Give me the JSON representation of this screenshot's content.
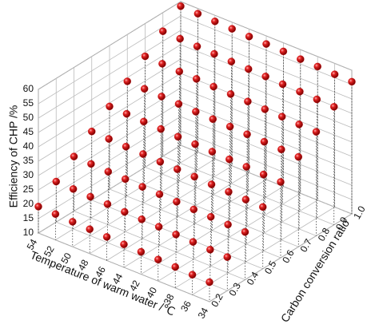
{
  "chart_data": {
    "type": "scatter3d",
    "xlabel": "Temperature of warm water /℃",
    "ylabel": "Carbon conversion ratio",
    "zlabel": "Efficiency of CHP  /%",
    "x": [
      34,
      36,
      38,
      40,
      42,
      44,
      46,
      48,
      50,
      52,
      54
    ],
    "y": [
      0.2,
      0.3,
      0.4,
      0.5,
      0.6,
      0.7,
      0.8,
      0.9,
      1
    ],
    "values": [
      [
        16.8,
        17.0,
        17.3,
        17.5,
        17.8,
        18.0,
        18.2,
        18.5,
        18.7,
        19.0,
        19.2
      ],
      [
        21.7,
        21.9,
        22.2,
        22.4,
        22.7,
        22.9,
        23.1,
        23.4,
        23.6,
        23.9,
        24.1
      ],
      [
        26.6,
        26.8,
        27.1,
        27.3,
        27.6,
        27.8,
        28.0,
        28.3,
        28.5,
        28.8,
        29.0
      ],
      [
        31.5,
        31.7,
        32.0,
        32.2,
        32.5,
        32.7,
        32.9,
        33.2,
        33.4,
        33.7,
        33.9
      ],
      [
        36.4,
        36.6,
        36.9,
        37.1,
        37.4,
        37.6,
        37.8,
        38.1,
        38.3,
        38.6,
        38.8
      ],
      [
        41.3,
        41.5,
        41.8,
        42.0,
        42.3,
        42.5,
        42.7,
        43.0,
        43.2,
        43.5,
        43.7
      ],
      [
        46.2,
        46.4,
        46.7,
        46.9,
        47.2,
        47.4,
        47.6,
        47.9,
        48.1,
        48.4,
        48.6
      ],
      [
        51.1,
        51.3,
        51.6,
        51.8,
        52.1,
        52.3,
        52.5,
        52.8,
        53.0,
        53.3,
        53.5
      ],
      [
        56.0,
        56.2,
        56.5,
        56.7,
        57.0,
        57.2,
        57.4,
        57.7,
        57.9,
        58.2,
        58.4
      ]
    ],
    "color": "#d81818",
    "xlim": [
      54,
      34
    ],
    "xticks": [
      54,
      52,
      50,
      48,
      46,
      44,
      42,
      40,
      38,
      36,
      34
    ],
    "ylim": [
      0.2,
      1
    ],
    "yticks": [
      0.2,
      0.3,
      0.4,
      0.5,
      0.6,
      0.7,
      0.8,
      0.9,
      {
        "value": 1,
        "label": "1.0"
      }
    ],
    "zlim": [
      10,
      60
    ],
    "zticks": [
      10,
      15,
      20,
      25,
      30,
      35,
      40,
      45,
      50,
      55,
      60
    ],
    "grid": true
  }
}
